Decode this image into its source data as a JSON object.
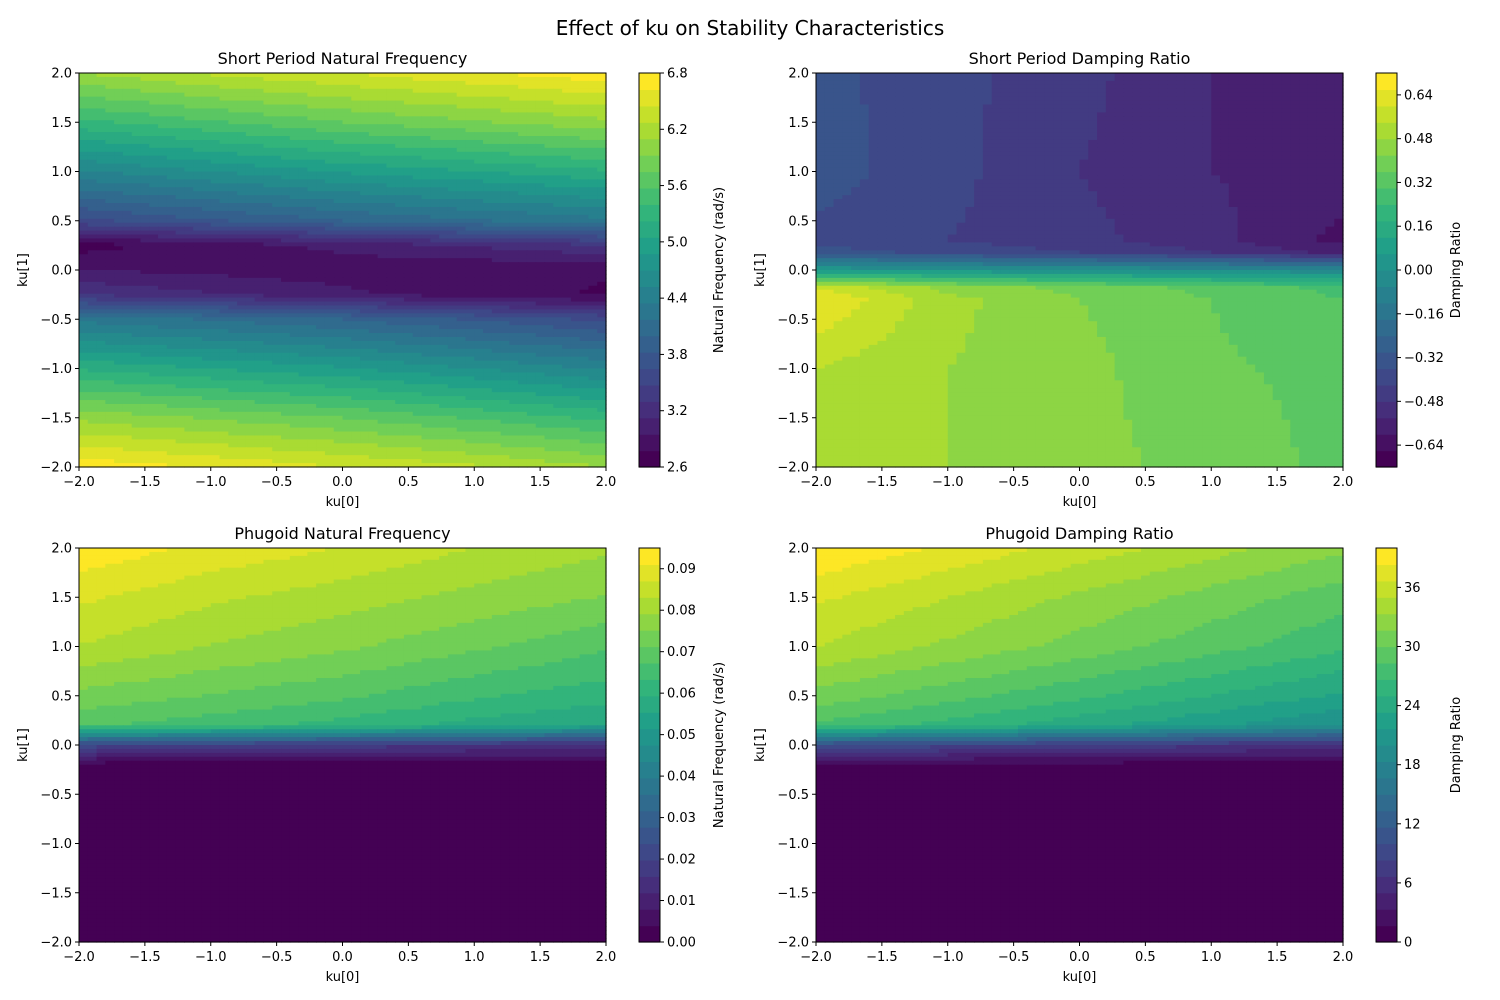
{
  "figure": {
    "title": "Effect of ku on Stability Characteristics"
  },
  "chart_data": [
    {
      "type": "heatmap",
      "title": "Short Period Natural Frequency",
      "xlabel": "ku[0]",
      "ylabel": "ku[1]",
      "xlim": [
        -2,
        2
      ],
      "ylim": [
        -2,
        2
      ],
      "xticks": [
        -2.0,
        -1.5,
        -1.0,
        -0.5,
        0.0,
        0.5,
        1.0,
        1.5,
        2.0
      ],
      "yticks": [
        -2.0,
        -1.5,
        -1.0,
        -0.5,
        0.0,
        0.5,
        1.0,
        1.5,
        2.0
      ],
      "colorbar": {
        "label": "Natural Frequency (rad/s)",
        "ticks": [
          2.6,
          3.2,
          3.8,
          4.4,
          5.0,
          5.6,
          6.2,
          6.8
        ],
        "levels": [
          2.6,
          6.8
        ],
        "colormap": "viridis"
      },
      "x": [
        -2,
        -1,
        0,
        1,
        2
      ],
      "y": [
        -2,
        -1.5,
        -1,
        -0.5,
        -0.25,
        0,
        0.25,
        0.5,
        1,
        1.5,
        2
      ],
      "z": [
        [
          6.75,
          6.6,
          6.45,
          6.3,
          6.1
        ],
        [
          6.05,
          5.9,
          5.75,
          5.55,
          5.35
        ],
        [
          5.2,
          5.05,
          4.9,
          4.7,
          4.5
        ],
        [
          4.3,
          4.15,
          4.0,
          3.8,
          3.6
        ],
        [
          3.3,
          3.15,
          3.0,
          2.85,
          2.75
        ],
        [
          2.95,
          2.9,
          2.85,
          2.8,
          2.8
        ],
        [
          2.7,
          2.85,
          3.0,
          3.15,
          3.3
        ],
        [
          3.6,
          3.8,
          4.0,
          4.15,
          4.3
        ],
        [
          4.5,
          4.7,
          4.9,
          5.05,
          5.2
        ],
        [
          5.35,
          5.55,
          5.75,
          5.9,
          6.05
        ],
        [
          6.1,
          6.3,
          6.45,
          6.6,
          6.75
        ]
      ]
    },
    {
      "type": "heatmap",
      "title": "Short Period Damping Ratio",
      "xlabel": "ku[0]",
      "ylabel": "ku[1]",
      "xlim": [
        -2,
        2
      ],
      "ylim": [
        -2,
        2
      ],
      "xticks": [
        -2.0,
        -1.5,
        -1.0,
        -0.5,
        0.0,
        0.5,
        1.0,
        1.5,
        2.0
      ],
      "yticks": [
        -2.0,
        -1.5,
        -1.0,
        -0.5,
        0.0,
        0.5,
        1.0,
        1.5,
        2.0
      ],
      "colorbar": {
        "label": "Damping Ratio",
        "ticks": [
          -0.64,
          -0.48,
          -0.32,
          -0.16,
          0.0,
          0.16,
          0.32,
          0.48,
          0.64
        ],
        "levels": [
          -0.72,
          0.72
        ],
        "colormap": "viridis"
      },
      "x": [
        -2,
        -1,
        0,
        1,
        2
      ],
      "y": [
        -2,
        -1,
        -0.3,
        -0.18,
        0,
        0.18,
        0.3,
        1,
        2
      ],
      "z": [
        [
          0.5,
          0.48,
          0.44,
          0.4,
          0.34
        ],
        [
          0.54,
          0.48,
          0.44,
          0.37,
          0.34
        ],
        [
          0.66,
          0.5,
          0.42,
          0.36,
          0.3
        ],
        [
          0.6,
          0.46,
          0.4,
          0.34,
          0.28
        ],
        [
          0.05,
          0.02,
          0.0,
          -0.02,
          -0.05
        ],
        [
          -0.33,
          -0.38,
          -0.42,
          -0.48,
          -0.56
        ],
        [
          -0.38,
          -0.42,
          -0.46,
          -0.52,
          -0.62
        ],
        [
          -0.33,
          -0.4,
          -0.48,
          -0.54,
          -0.56
        ],
        [
          -0.34,
          -0.4,
          -0.46,
          -0.54,
          -0.58
        ]
      ]
    },
    {
      "type": "heatmap",
      "title": "Phugoid Natural Frequency",
      "xlabel": "ku[0]",
      "ylabel": "ku[1]",
      "xlim": [
        -2,
        2
      ],
      "ylim": [
        -2,
        2
      ],
      "xticks": [
        -2.0,
        -1.5,
        -1.0,
        -0.5,
        0.0,
        0.5,
        1.0,
        1.5,
        2.0
      ],
      "yticks": [
        -2.0,
        -1.5,
        -1.0,
        -0.5,
        0.0,
        0.5,
        1.0,
        1.5,
        2.0
      ],
      "colorbar": {
        "label": "Natural Frequency (rad/s)",
        "ticks": [
          0.0,
          0.01,
          0.02,
          0.03,
          0.04,
          0.05,
          0.06,
          0.07,
          0.08,
          0.09
        ],
        "levels": [
          0.0,
          0.095
        ],
        "colormap": "viridis"
      },
      "x": [
        -2,
        -1,
        0,
        1,
        2
      ],
      "y": [
        -2,
        -0.2,
        0.0,
        0.2,
        0.5,
        1,
        1.5,
        2
      ],
      "z": [
        [
          0.002,
          0.002,
          0.002,
          0.002,
          0.002
        ],
        [
          0.002,
          0.002,
          0.002,
          0.002,
          0.002
        ],
        [
          0.022,
          0.02,
          0.018,
          0.016,
          0.014
        ],
        [
          0.068,
          0.065,
          0.062,
          0.058,
          0.055
        ],
        [
          0.074,
          0.071,
          0.068,
          0.064,
          0.061
        ],
        [
          0.083,
          0.079,
          0.076,
          0.072,
          0.068
        ],
        [
          0.088,
          0.084,
          0.081,
          0.078,
          0.075
        ],
        [
          0.094,
          0.09,
          0.087,
          0.083,
          0.08
        ]
      ]
    },
    {
      "type": "heatmap",
      "title": "Phugoid Damping Ratio",
      "xlabel": "ku[0]",
      "ylabel": "ku[1]",
      "xlim": [
        -2,
        2
      ],
      "ylim": [
        -2,
        2
      ],
      "xticks": [
        -2.0,
        -1.5,
        -1.0,
        -0.5,
        0.0,
        0.5,
        1.0,
        1.5,
        2.0
      ],
      "yticks": [
        -2.0,
        -1.5,
        -1.0,
        -0.5,
        0.0,
        0.5,
        1.0,
        1.5,
        2.0
      ],
      "colorbar": {
        "label": "Damping Ratio",
        "ticks": [
          0,
          6,
          12,
          18,
          24,
          30,
          36
        ],
        "levels": [
          0,
          40
        ],
        "colormap": "viridis"
      },
      "x": [
        -2,
        -1,
        0,
        1,
        2
      ],
      "y": [
        -2,
        -0.2,
        0.0,
        0.2,
        0.5,
        1,
        1.5,
        2
      ],
      "z": [
        [
          1,
          1,
          1,
          1,
          1
        ],
        [
          1,
          1,
          1,
          1,
          1
        ],
        [
          10,
          9,
          8,
          7,
          6
        ],
        [
          28,
          26,
          24,
          22,
          20
        ],
        [
          31,
          29,
          27,
          25,
          23
        ],
        [
          35,
          33,
          31,
          29,
          27
        ],
        [
          37,
          35,
          33,
          31,
          29
        ],
        [
          40,
          38,
          36,
          34,
          32
        ]
      ]
    }
  ]
}
